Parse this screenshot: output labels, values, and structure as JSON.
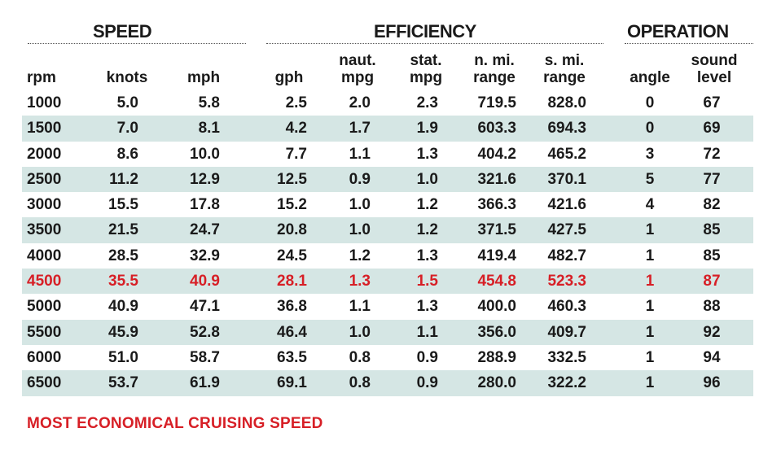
{
  "groups": {
    "speed": "SPEED",
    "efficiency": "EFFICIENCY",
    "operation": "OPERATION"
  },
  "columns": {
    "rpm": [
      "rpm"
    ],
    "knots": [
      "knots"
    ],
    "mph": [
      "mph"
    ],
    "gph": [
      "gph"
    ],
    "naut_mpg": [
      "naut.",
      "mpg"
    ],
    "stat_mpg": [
      "stat.",
      "mpg"
    ],
    "n_range": [
      "n. mi.",
      "range"
    ],
    "s_range": [
      "s. mi.",
      "range"
    ],
    "angle": [
      "angle"
    ],
    "sound": [
      "sound",
      "level"
    ]
  },
  "rows": [
    {
      "rpm": "1000",
      "knots": "5.0",
      "mph": "5.8",
      "gph": "2.5",
      "naut_mpg": "2.0",
      "stat_mpg": "2.3",
      "n_range": "719.5",
      "s_range": "828.0",
      "angle": "0",
      "sound": "67"
    },
    {
      "rpm": "1500",
      "knots": "7.0",
      "mph": "8.1",
      "gph": "4.2",
      "naut_mpg": "1.7",
      "stat_mpg": "1.9",
      "n_range": "603.3",
      "s_range": "694.3",
      "angle": "0",
      "sound": "69"
    },
    {
      "rpm": "2000",
      "knots": "8.6",
      "mph": "10.0",
      "gph": "7.7",
      "naut_mpg": "1.1",
      "stat_mpg": "1.3",
      "n_range": "404.2",
      "s_range": "465.2",
      "angle": "3",
      "sound": "72"
    },
    {
      "rpm": "2500",
      "knots": "11.2",
      "mph": "12.9",
      "gph": "12.5",
      "naut_mpg": "0.9",
      "stat_mpg": "1.0",
      "n_range": "321.6",
      "s_range": "370.1",
      "angle": "5",
      "sound": "77"
    },
    {
      "rpm": "3000",
      "knots": "15.5",
      "mph": "17.8",
      "gph": "15.2",
      "naut_mpg": "1.0",
      "stat_mpg": "1.2",
      "n_range": "366.3",
      "s_range": "421.6",
      "angle": "4",
      "sound": "82"
    },
    {
      "rpm": "3500",
      "knots": "21.5",
      "mph": "24.7",
      "gph": "20.8",
      "naut_mpg": "1.0",
      "stat_mpg": "1.2",
      "n_range": "371.5",
      "s_range": "427.5",
      "angle": "1",
      "sound": "85"
    },
    {
      "rpm": "4000",
      "knots": "28.5",
      "mph": "32.9",
      "gph": "24.5",
      "naut_mpg": "1.2",
      "stat_mpg": "1.3",
      "n_range": "419.4",
      "s_range": "482.7",
      "angle": "1",
      "sound": "85"
    },
    {
      "rpm": "4500",
      "knots": "35.5",
      "mph": "40.9",
      "gph": "28.1",
      "naut_mpg": "1.3",
      "stat_mpg": "1.5",
      "n_range": "454.8",
      "s_range": "523.3",
      "angle": "1",
      "sound": "87",
      "highlight": true
    },
    {
      "rpm": "5000",
      "knots": "40.9",
      "mph": "47.1",
      "gph": "36.8",
      "naut_mpg": "1.1",
      "stat_mpg": "1.3",
      "n_range": "400.0",
      "s_range": "460.3",
      "angle": "1",
      "sound": "88"
    },
    {
      "rpm": "5500",
      "knots": "45.9",
      "mph": "52.8",
      "gph": "46.4",
      "naut_mpg": "1.0",
      "stat_mpg": "1.1",
      "n_range": "356.0",
      "s_range": "409.7",
      "angle": "1",
      "sound": "92"
    },
    {
      "rpm": "6000",
      "knots": "51.0",
      "mph": "58.7",
      "gph": "63.5",
      "naut_mpg": "0.8",
      "stat_mpg": "0.9",
      "n_range": "288.9",
      "s_range": "332.5",
      "angle": "1",
      "sound": "94"
    },
    {
      "rpm": "6500",
      "knots": "53.7",
      "mph": "61.9",
      "gph": "69.1",
      "naut_mpg": "0.8",
      "stat_mpg": "0.9",
      "n_range": "280.0",
      "s_range": "322.2",
      "angle": "1",
      "sound": "96"
    }
  ],
  "footnote": "MOST ECONOMICAL CRUISING SPEED",
  "colors": {
    "text": "#1a1a1a",
    "highlight": "#d71f26",
    "row_shade": "#d5e6e4"
  }
}
